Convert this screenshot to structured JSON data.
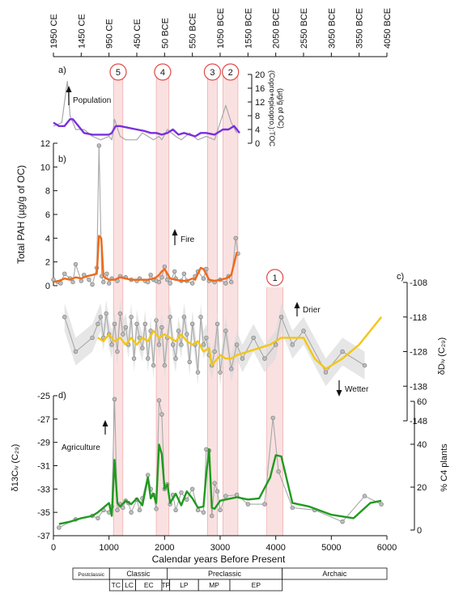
{
  "top_axis": {
    "ticks": [
      "1950 CE",
      "1450 CE",
      "950 CE",
      "450 CE",
      "50 BCE",
      "550 BCE",
      "1050 BCE",
      "1550 BCE",
      "2050 BCE",
      "2550 BCE",
      "3050 BCE",
      "3550 BCE",
      "4050 BCE"
    ],
    "tick_bp": [
      0,
      500,
      1000,
      1500,
      2000,
      2500,
      3000,
      3500,
      4000,
      4500,
      5000,
      5500,
      6000
    ]
  },
  "bottom_axis": {
    "label": "Calendar years Before Present",
    "ticks": [
      "0",
      "1000",
      "2000",
      "3000",
      "4000",
      "5000",
      "6000"
    ],
    "range": [
      0,
      6000
    ]
  },
  "events": [
    {
      "label": "5",
      "start": 1080,
      "end": 1250
    },
    {
      "label": "4",
      "start": 1850,
      "end": 2080
    },
    {
      "label": "3",
      "start": 2770,
      "end": 2950
    },
    {
      "label": "2",
      "start": 3050,
      "end": 3320
    },
    {
      "label": "1",
      "start": 3840,
      "end": 4130
    }
  ],
  "panels": {
    "a": {
      "tag": "a)",
      "ylabel": "(Copro+epicopro.):TOC",
      "ylabel2": "(µg/g of OC)",
      "ticks": [
        "20",
        "16",
        "12",
        "8",
        "4",
        "0"
      ],
      "ylim": [
        0,
        20
      ],
      "arrow_label": "Population"
    },
    "b": {
      "tag": "b)",
      "ylabel": "Total PAH (µg/g of OC)",
      "ticks": [
        "12",
        "10",
        "8",
        "6",
        "4",
        "2",
        "0"
      ],
      "ylim": [
        0,
        12
      ],
      "arrow_label": "Fire"
    },
    "c": {
      "tag": "c)",
      "ylabel": "δDₗᵥ (C₂₉)",
      "ticks": [
        "-108",
        "-118",
        "-128",
        "-138",
        "-148"
      ],
      "ylim": [
        -148,
        -108
      ],
      "drier_label": "Drier",
      "wetter_label": "Wetter"
    },
    "d": {
      "tag": "d)",
      "ylabel": "δ13Cₗᵥ (C₂₉)",
      "ticks": [
        "-25",
        "-27",
        "-29",
        "-31",
        "-33",
        "-35",
        "-37"
      ],
      "ylim": [
        -37,
        -25
      ],
      "right_label": "% C4 plants",
      "right_ticks": [
        "60",
        "40",
        "20",
        "0"
      ],
      "arrow_label": "Agriculture"
    }
  },
  "periods": {
    "top": [
      {
        "label": "Postclassic",
        "start": 0,
        "end": 700
      },
      {
        "label": "Classic",
        "start": 700,
        "end": 1800
      },
      {
        "label": "Preclassic",
        "start": 1800,
        "end": 4000
      },
      {
        "label": "Archaic",
        "start": 4000,
        "end": 6000
      }
    ],
    "bottom": [
      {
        "label": "TC",
        "start": 700,
        "end": 950
      },
      {
        "label": "LC",
        "start": 950,
        "end": 1200
      },
      {
        "label": "EC",
        "start": 1200,
        "end": 1700
      },
      {
        "label": "TP",
        "start": 1700,
        "end": 1850
      },
      {
        "label": "LP",
        "start": 1850,
        "end": 2400
      },
      {
        "label": "MP",
        "start": 2400,
        "end": 3000
      },
      {
        "label": "EP",
        "start": 3000,
        "end": 4000
      }
    ]
  },
  "colors": {
    "population": "#7a2fe0",
    "pah": "#ee6a1a",
    "dD": "#f3c614",
    "d13c": "#1f9a1f",
    "raw": "#a8a8a8",
    "band": "#f6c9c9",
    "event_circle": "#e04848"
  },
  "chart_data": [
    {
      "type": "line",
      "panel": "a",
      "ylabel": "(Copro+epicopro.):TOC (µg/g of OC)",
      "ylim": [
        0,
        20
      ],
      "series": [
        {
          "name": "raw",
          "x": [
            0,
            150,
            250,
            300,
            400,
            550,
            700,
            850,
            1000,
            1050,
            1100,
            1200,
            1300,
            1500,
            1600,
            1800,
            1900,
            1950,
            2050,
            2200,
            2300,
            2450,
            2600,
            2750,
            2900,
            3100,
            3200,
            3300
          ],
          "y": [
            5,
            6,
            18,
            8,
            4,
            4,
            2,
            1,
            2,
            1,
            7,
            2,
            1,
            1,
            3,
            1,
            2,
            1,
            4,
            2,
            1,
            3,
            1,
            2,
            1,
            11,
            6,
            3
          ]
        },
        {
          "name": "smoothed",
          "x": [
            0,
            100,
            200,
            300,
            350,
            450,
            550,
            700,
            850,
            1000,
            1050,
            1120,
            1200,
            1350,
            1500,
            1650,
            1750,
            1850,
            1950,
            2050,
            2150,
            2250,
            2350,
            2450,
            2550,
            2650,
            2750,
            2900,
            3050,
            3150,
            3250,
            3350
          ],
          "y": [
            6,
            5,
            5,
            7,
            7,
            5,
            3,
            2.5,
            2.5,
            2.5,
            3,
            5,
            5,
            4.5,
            4,
            3.5,
            3,
            3,
            2.5,
            3,
            4,
            2.5,
            3,
            2.5,
            2,
            3,
            3,
            2.5,
            4,
            4,
            5,
            3
          ]
        }
      ]
    },
    {
      "type": "line",
      "panel": "b",
      "ylabel": "Total PAH (µg/g of OC)",
      "ylim": [
        0,
        12
      ],
      "series": [
        {
          "name": "raw",
          "x": [
            0,
            80,
            130,
            200,
            300,
            350,
            400,
            500,
            550,
            640,
            700,
            780,
            820,
            870,
            900,
            960,
            1000,
            1050,
            1150,
            1200,
            1300,
            1400,
            1500,
            1550,
            1650,
            1700,
            1750,
            1800,
            1850,
            1900,
            1950,
            2000,
            2050,
            2100,
            2180,
            2200,
            2300,
            2350,
            2400,
            2500,
            2550,
            2600,
            2700,
            2750,
            2800,
            2900,
            3000,
            3100,
            3150,
            3200,
            3280,
            3320
          ],
          "y": [
            0.5,
            0.3,
            0.2,
            1.0,
            0.6,
            0.3,
            1.8,
            0.4,
            0.9,
            0.5,
            0.1,
            1.5,
            11.8,
            0.8,
            0.3,
            1.0,
            0.2,
            0.6,
            0.4,
            0.8,
            0.7,
            0.5,
            0.4,
            0.6,
            0.4,
            0.3,
            0.9,
            0.5,
            0.4,
            0.3,
            0.7,
            1.6,
            0.5,
            0.2,
            1.2,
            0.6,
            0.4,
            1.0,
            0.4,
            0.2,
            0.8,
            1.2,
            0.6,
            1.4,
            0.4,
            0.3,
            0.5,
            0.2,
            0.8,
            0.3,
            4.0,
            2.7
          ]
        },
        {
          "name": "smoothed",
          "x": [
            0,
            100,
            200,
            300,
            400,
            500,
            600,
            700,
            780,
            820,
            860,
            900,
            950,
            1000,
            1100,
            1200,
            1300,
            1400,
            1500,
            1600,
            1700,
            1800,
            1850,
            1900,
            1950,
            2000,
            2050,
            2100,
            2200,
            2300,
            2400,
            2500,
            2550,
            2600,
            2650,
            2700,
            2800,
            2900,
            3000,
            3100,
            3200,
            3300
          ],
          "y": [
            0.3,
            0.4,
            0.6,
            0.5,
            0.7,
            0.6,
            0.8,
            0.9,
            1.0,
            4.2,
            4.0,
            0.8,
            0.6,
            0.5,
            0.5,
            0.7,
            0.6,
            0.5,
            0.5,
            0.5,
            0.5,
            0.6,
            0.7,
            0.9,
            1.2,
            1.4,
            1.0,
            0.6,
            0.5,
            0.4,
            0.4,
            0.6,
            0.5,
            1.0,
            1.5,
            1.4,
            0.5,
            0.4,
            0.5,
            0.6,
            0.9,
            2.8
          ]
        }
      ]
    },
    {
      "type": "line",
      "panel": "c",
      "ylabel": "δDlw (C29)",
      "ylim": [
        -148,
        -108
      ],
      "series": [
        {
          "name": "raw",
          "x": [
            200,
            400,
            700,
            800,
            850,
            900,
            950,
            1000,
            1050,
            1100,
            1150,
            1200,
            1250,
            1300,
            1350,
            1400,
            1450,
            1500,
            1550,
            1600,
            1650,
            1700,
            1750,
            1800,
            1850,
            1900,
            1950,
            2000,
            2050,
            2100,
            2150,
            2200,
            2250,
            2300,
            2350,
            2400,
            2450,
            2500,
            2550,
            2600,
            2650,
            2700,
            2750,
            2800,
            2850,
            2900,
            2950,
            3000,
            3100,
            3200,
            3300,
            3400,
            3600,
            3800,
            4000,
            4100,
            4300,
            4500,
            4900,
            5200,
            5600
          ],
          "y": [
            -118,
            -128,
            -124,
            -120,
            -118,
            -124,
            -117,
            -123,
            -126,
            -120,
            -128,
            -117,
            -123,
            -121,
            -126,
            -118,
            -130,
            -120,
            -124,
            -127,
            -120,
            -130,
            -122,
            -132,
            -119,
            -126,
            -121,
            -132,
            -124,
            -118,
            -126,
            -130,
            -122,
            -126,
            -118,
            -123,
            -131,
            -120,
            -126,
            -134,
            -118,
            -126,
            -124,
            -129,
            -132,
            -128,
            -120,
            -134,
            -122,
            -133,
            -126,
            -130,
            -124,
            -130,
            -126,
            -118,
            -126,
            -122,
            -134,
            -128,
            -132
          ]
        },
        {
          "name": "smoothed",
          "x": [
            800,
            900,
            1000,
            1100,
            1200,
            1300,
            1400,
            1500,
            1600,
            1700,
            1800,
            1900,
            2000,
            2100,
            2200,
            2300,
            2400,
            2500,
            2600,
            2700,
            2800,
            2850,
            2900,
            2950,
            3000,
            3100,
            3200,
            3300,
            3500,
            3700,
            3900,
            4100,
            4300,
            4500,
            4700,
            4900,
            5200,
            5500,
            5900
          ],
          "y": [
            -124,
            -125,
            -123,
            -125,
            -124,
            -126,
            -124,
            -126,
            -124,
            -125,
            -122,
            -124,
            -123,
            -124,
            -125,
            -123,
            -125,
            -126,
            -125,
            -128,
            -127,
            -132,
            -131,
            -130,
            -129,
            -130,
            -130,
            -129,
            -128,
            -127,
            -126,
            -124,
            -124,
            -124,
            -130,
            -133,
            -130,
            -126,
            -118
          ]
        }
      ]
    },
    {
      "type": "line",
      "panel": "d",
      "ylabel": "δ13Clw (C29)",
      "ylim": [
        -37,
        -25
      ],
      "series": [
        {
          "name": "raw",
          "x": [
            100,
            400,
            700,
            800,
            900,
            1000,
            1050,
            1100,
            1150,
            1200,
            1250,
            1300,
            1350,
            1400,
            1500,
            1550,
            1600,
            1700,
            1750,
            1800,
            1850,
            1900,
            1950,
            2000,
            2050,
            2100,
            2150,
            2200,
            2300,
            2400,
            2500,
            2600,
            2700,
            2750,
            2800,
            2850,
            2900,
            2950,
            3000,
            3100,
            3300,
            3500,
            3800,
            3950,
            4050,
            4300,
            4700,
            5200,
            5600,
            5900
          ],
          "y": [
            -36.3,
            -35.6,
            -35.3,
            -35.5,
            -34.8,
            -35.0,
            -34.5,
            -25.3,
            -34.8,
            -34.3,
            -34.6,
            -34.0,
            -34.2,
            -35.0,
            -33.9,
            -34.8,
            -33.8,
            -31.8,
            -33.0,
            -33.5,
            -34.7,
            -25.4,
            -26.6,
            -33.0,
            -32.6,
            -34.3,
            -33.5,
            -34.8,
            -33.3,
            -33.9,
            -33.0,
            -34.8,
            -35.0,
            -29.6,
            -29.7,
            -35.3,
            -32.5,
            -33.2,
            -34.8,
            -33.6,
            -33.5,
            -34.3,
            -34.3,
            -26.9,
            -31.5,
            -34.6,
            -34.8,
            -35.8,
            -33.6,
            -34.3
          ]
        },
        {
          "name": "smoothed",
          "x": [
            100,
            300,
            500,
            700,
            800,
            900,
            1000,
            1050,
            1100,
            1150,
            1200,
            1300,
            1400,
            1500,
            1600,
            1700,
            1750,
            1800,
            1850,
            1900,
            1950,
            2000,
            2050,
            2100,
            2200,
            2300,
            2400,
            2500,
            2600,
            2700,
            2750,
            2800,
            2850,
            2900,
            3000,
            3100,
            3300,
            3500,
            3700,
            3900,
            4000,
            4100,
            4300,
            4600,
            5000,
            5400,
            5700,
            5900
          ],
          "y": [
            -36.0,
            -35.8,
            -35.5,
            -35.3,
            -35.0,
            -34.6,
            -34.2,
            -35.3,
            -30.5,
            -34.2,
            -34.5,
            -34.0,
            -34.3,
            -33.8,
            -34.4,
            -32.0,
            -33.8,
            -33.4,
            -34.2,
            -29.2,
            -30.0,
            -33.0,
            -32.6,
            -34.2,
            -33.4,
            -34.4,
            -33.2,
            -33.8,
            -34.6,
            -34.5,
            -31.8,
            -29.6,
            -34.6,
            -34.7,
            -34.0,
            -33.9,
            -33.7,
            -33.9,
            -33.8,
            -32.0,
            -30.1,
            -30.2,
            -34.2,
            -34.5,
            -35.2,
            -35.5,
            -34.2,
            -34.0
          ]
        }
      ]
    }
  ]
}
